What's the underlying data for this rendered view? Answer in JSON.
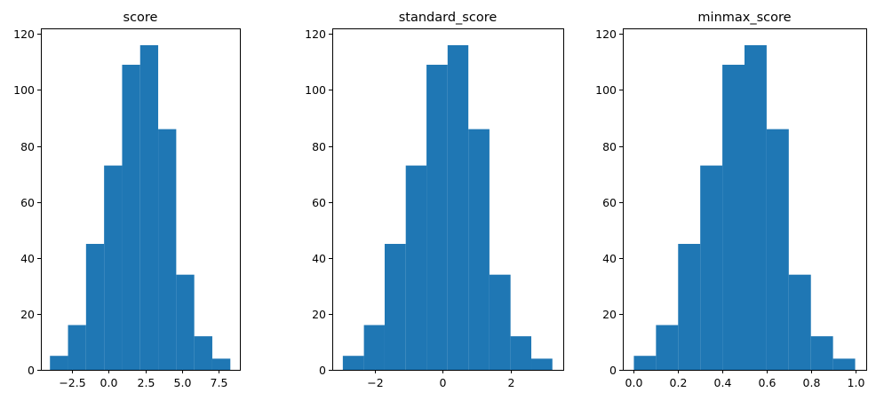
{
  "chart_data": [
    {
      "type": "bar",
      "title": "score",
      "xlim": [
        -4.62,
        8.95
      ],
      "ylim": [
        0,
        122
      ],
      "xticks": [
        -2.5,
        0.0,
        2.5,
        5.0,
        7.5
      ],
      "xtick_labels": [
        "−2.5",
        "0.0",
        "2.5",
        "5.0",
        "7.5"
      ],
      "yticks": [
        0,
        20,
        40,
        60,
        80,
        100,
        120
      ],
      "bin_edges": [
        -4.0,
        -2.77,
        -1.54,
        -0.31,
        0.92,
        2.15,
        3.38,
        4.61,
        5.84,
        7.07,
        8.3
      ],
      "counts": [
        5,
        16,
        45,
        73,
        109,
        116,
        86,
        34,
        12,
        4
      ],
      "color": "#1f77b4"
    },
    {
      "type": "bar",
      "title": "standard_score",
      "xlim": [
        -3.25,
        3.54
      ],
      "ylim": [
        0,
        122
      ],
      "xticks": [
        -2,
        0,
        2
      ],
      "xtick_labels": [
        "−2",
        "0",
        "2"
      ],
      "yticks": [
        0,
        20,
        40,
        60,
        80,
        100,
        120
      ],
      "bin_edges": [
        -2.94,
        -2.32,
        -1.71,
        -1.09,
        -0.48,
        0.14,
        0.75,
        1.37,
        1.99,
        2.6,
        3.22
      ],
      "counts": [
        5,
        16,
        45,
        73,
        109,
        116,
        86,
        34,
        12,
        4
      ],
      "color": "#1f77b4"
    },
    {
      "type": "bar",
      "title": "minmax_score",
      "xlim": [
        -0.05,
        1.05
      ],
      "ylim": [
        0,
        122
      ],
      "xticks": [
        0.0,
        0.2,
        0.4,
        0.6,
        0.8,
        1.0
      ],
      "xtick_labels": [
        "0.0",
        "0.2",
        "0.4",
        "0.6",
        "0.8",
        "1.0"
      ],
      "yticks": [
        0,
        20,
        40,
        60,
        80,
        100,
        120
      ],
      "bin_edges": [
        0.0,
        0.1,
        0.2,
        0.3,
        0.4,
        0.5,
        0.6,
        0.7,
        0.8,
        0.9,
        1.0
      ],
      "counts": [
        5,
        16,
        45,
        73,
        109,
        116,
        86,
        34,
        12,
        4
      ],
      "color": "#1f77b4"
    }
  ]
}
